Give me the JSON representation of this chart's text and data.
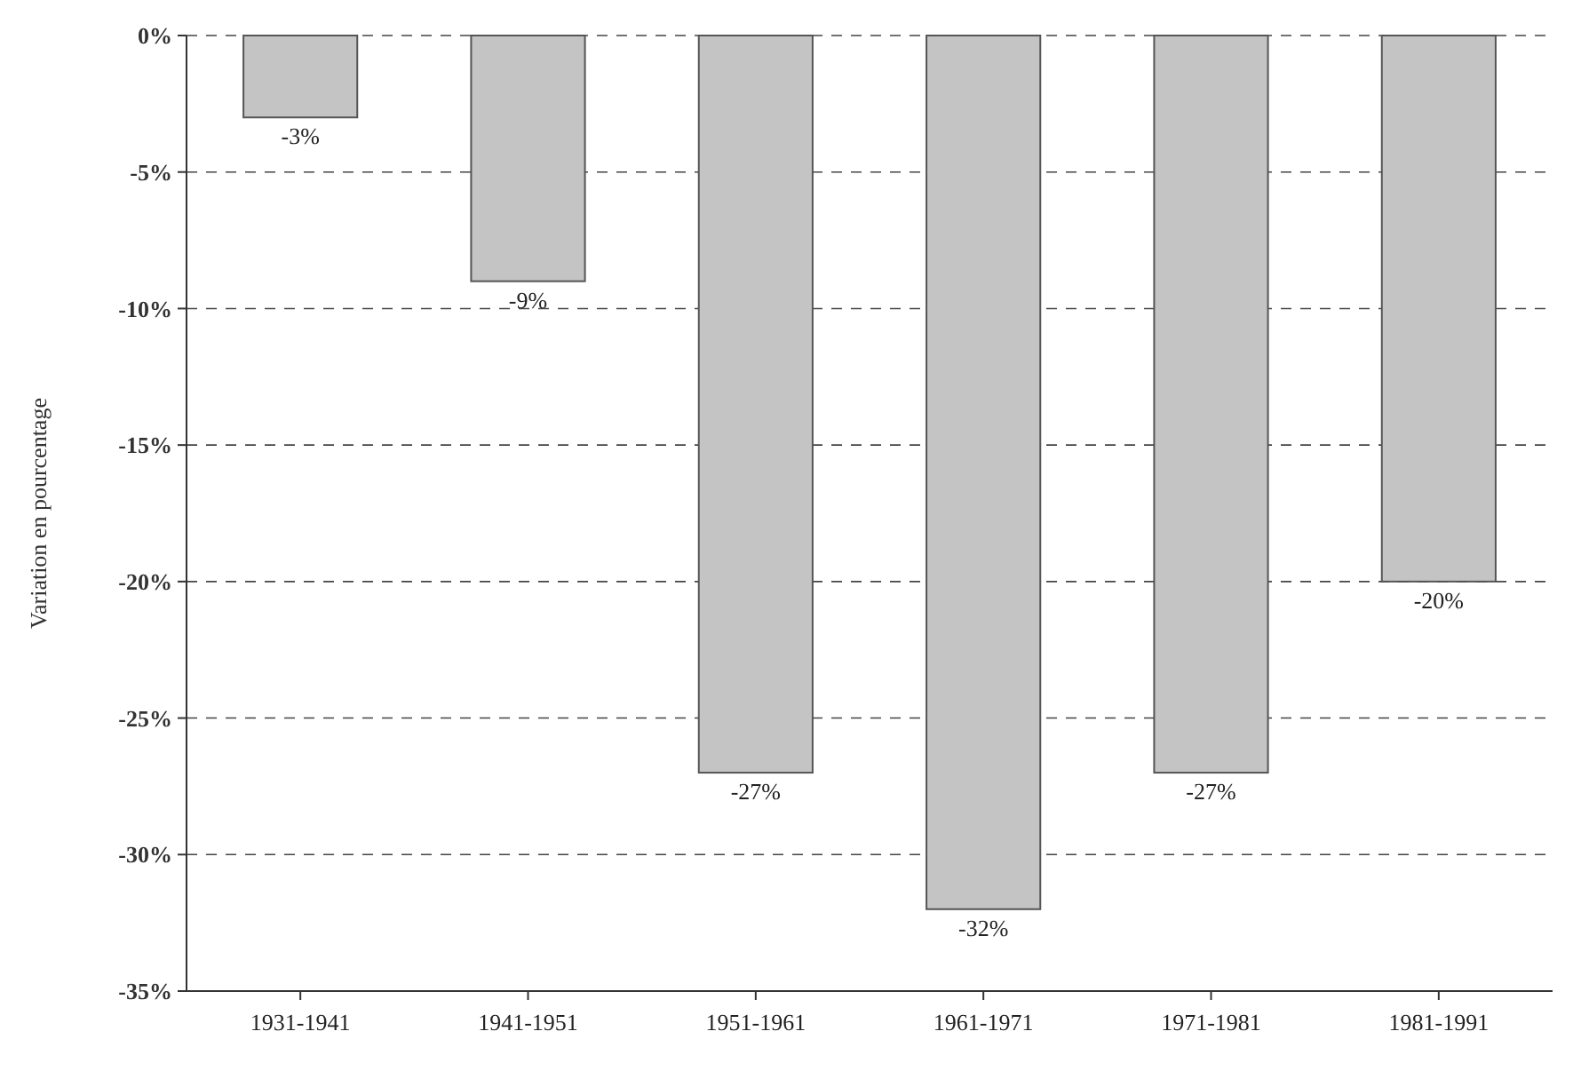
{
  "chart_data": {
    "type": "bar",
    "ylabel": "Variation en pourcentage",
    "categories": [
      "1931-1941",
      "1941-1951",
      "1951-1961",
      "1961-1971",
      "1971-1981",
      "1981-1991"
    ],
    "values": [
      -3,
      -9,
      -27,
      -32,
      -27,
      -20
    ],
    "value_labels": [
      "-3%",
      "-9%",
      "-27%",
      "-32%",
      "-27%",
      "-20%"
    ],
    "color": "#c4c4c4",
    "ylim": [
      -35,
      0
    ],
    "yticks": [
      {
        "value": 0,
        "label": "0%"
      },
      {
        "value": -5,
        "label": "-5%"
      },
      {
        "value": -10,
        "label": "-10%"
      },
      {
        "value": -15,
        "label": "-15%"
      },
      {
        "value": -20,
        "label": "-20%"
      },
      {
        "value": -25,
        "label": "-25%"
      },
      {
        "value": -30,
        "label": "-30%"
      },
      {
        "value": -35,
        "label": "-35%"
      }
    ],
    "grid": "y"
  }
}
